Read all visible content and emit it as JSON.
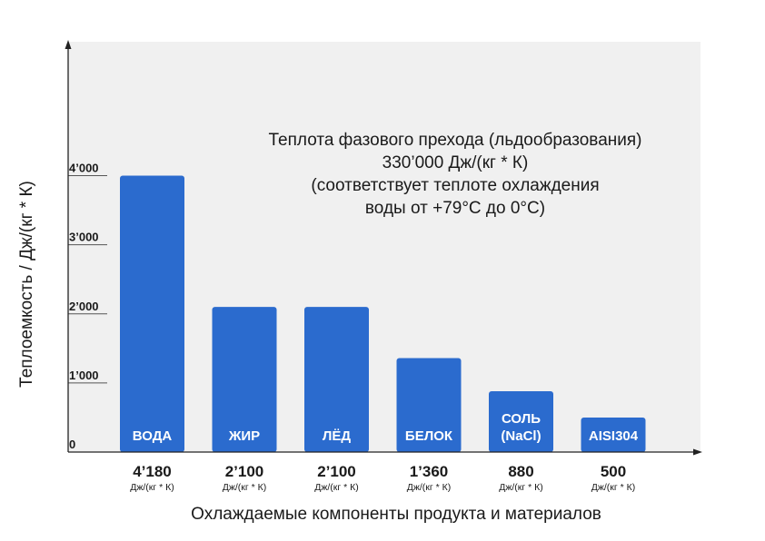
{
  "chart_data": {
    "type": "bar",
    "categories": [
      [
        "ВОДА"
      ],
      [
        "ЖИР"
      ],
      [
        "ЛЁД"
      ],
      [
        "БЕЛОК"
      ],
      [
        "СОЛЬ",
        "(NaCl)"
      ],
      [
        "AISI304"
      ]
    ],
    "values": [
      4180,
      2100,
      2100,
      1360,
      880,
      500
    ],
    "value_labels": [
      "4’180",
      "2’100",
      "2’100",
      "1’360",
      "880",
      "500"
    ],
    "unit_label": "Дж/(кг * К)",
    "ylim": [
      0,
      4000
    ],
    "yticks": [
      {
        "value": 0,
        "label": "0"
      },
      {
        "value": 1000,
        "label": "1’000"
      },
      {
        "value": 2000,
        "label": "2’000"
      },
      {
        "value": 3000,
        "label": "3’000"
      },
      {
        "value": 4000,
        "label": "4’000"
      }
    ],
    "ylabel": "Теплоемкость / Дж/(кг * К)",
    "xlabel": "Охлаждаемые компоненты продукта и материалов",
    "annotation": [
      "Теплота фазового прехода (льдообразования)",
      "330’000 Дж/(кг * К)",
      "(соответствует теплоте охлаждения",
      "воды от +79°С до 0°С)"
    ],
    "grid": false,
    "colors": {
      "bar": "#2b6bce",
      "plot_bg": "#f0f0f0",
      "axis": "#222222",
      "text": "#1a1a1a"
    }
  }
}
